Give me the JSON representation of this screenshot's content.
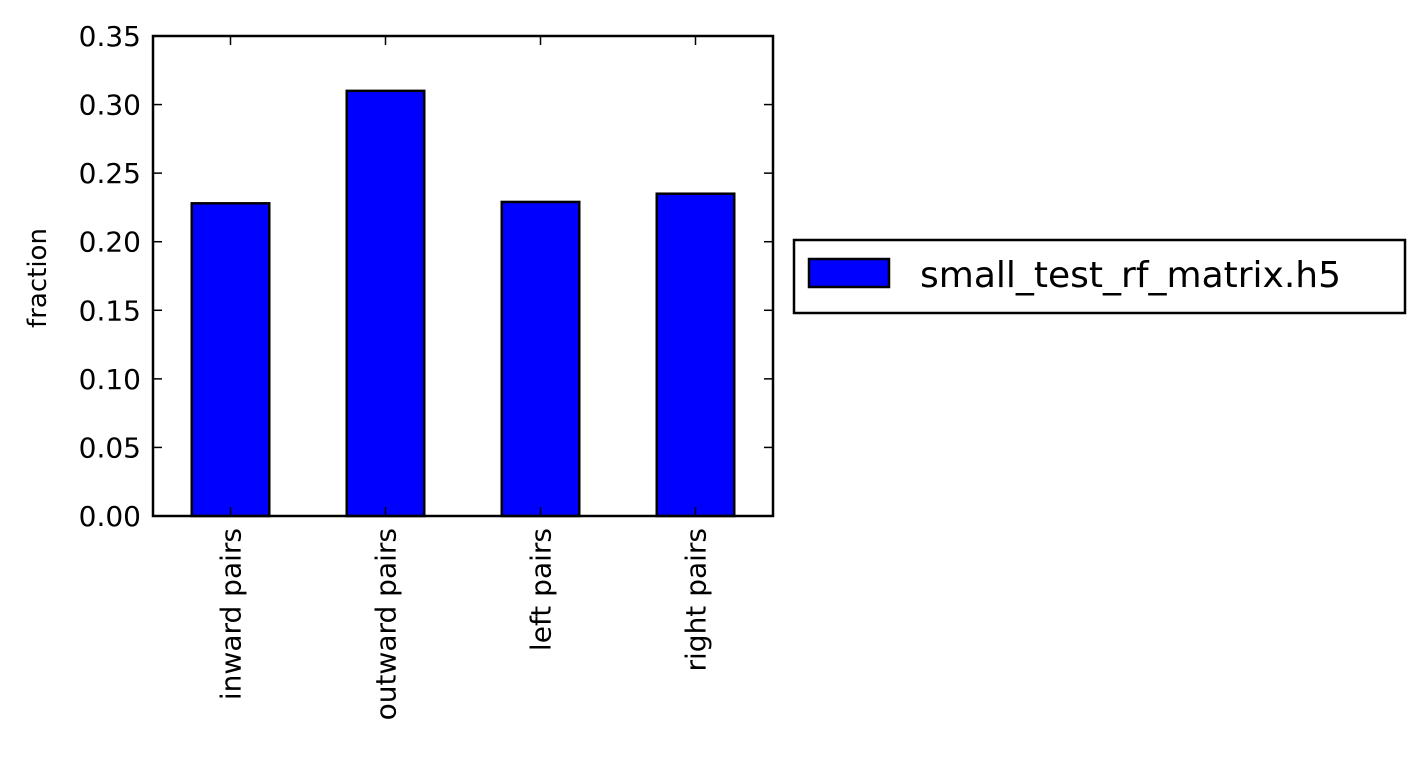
{
  "chart_data": {
    "type": "bar",
    "categories": [
      "inward pairs",
      "outward pairs",
      "left pairs",
      "right pairs"
    ],
    "series": [
      {
        "name": "small_test_rf_matrix.h5",
        "values": [
          0.228,
          0.31,
          0.229,
          0.235
        ],
        "color": "#0000ff"
      }
    ],
    "ylabel": "fraction",
    "xlabel": "",
    "ylim": [
      0,
      0.35
    ],
    "yticks": [
      "0.00",
      "0.05",
      "0.10",
      "0.15",
      "0.20",
      "0.25",
      "0.30",
      "0.35"
    ],
    "grid": false,
    "legend": "outside-right",
    "x_tick_rotation": "vertical"
  }
}
